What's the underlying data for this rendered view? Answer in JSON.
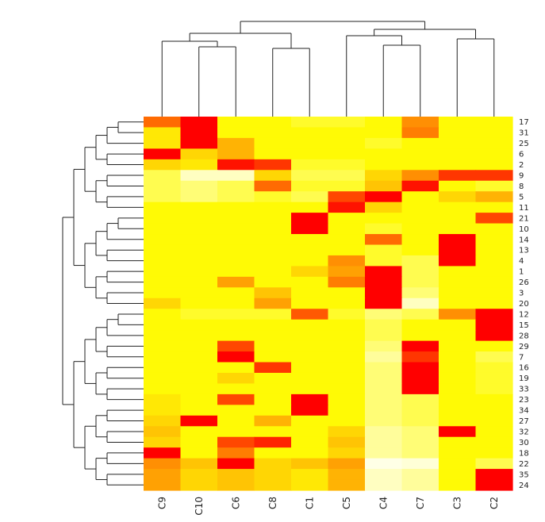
{
  "chart_data": {
    "type": "heatmap",
    "title": "",
    "xlabel": "",
    "ylabel": "",
    "legend": "none",
    "columns": [
      "C9",
      "C10",
      "C6",
      "C8",
      "C1",
      "C5",
      "C4",
      "C7",
      "C3",
      "C2"
    ],
    "rows": [
      "17",
      "31",
      "25",
      "6",
      "2",
      "9",
      "8",
      "5",
      "11",
      "21",
      "10",
      "14",
      "13",
      "4",
      "1",
      "26",
      "3",
      "20",
      "12",
      "15",
      "28",
      "29",
      "7",
      "16",
      "19",
      "33",
      "23",
      "34",
      "27",
      "32",
      "30",
      "18",
      "22",
      "35",
      "24"
    ],
    "value_scale": "0 = pale/white, 1 = red (heat colors)",
    "values": [
      [
        0.7,
        1.0,
        0.3,
        0.3,
        0.25,
        0.25,
        0.3,
        0.6,
        0.3,
        0.3
      ],
      [
        0.35,
        1.0,
        0.3,
        0.3,
        0.3,
        0.3,
        0.3,
        0.65,
        0.3,
        0.3
      ],
      [
        0.35,
        1.0,
        0.5,
        0.3,
        0.3,
        0.3,
        0.25,
        0.3,
        0.3,
        0.3
      ],
      [
        1.0,
        0.4,
        0.5,
        0.3,
        0.3,
        0.3,
        0.3,
        0.3,
        0.3,
        0.3
      ],
      [
        0.4,
        0.35,
        0.95,
        0.85,
        0.25,
        0.25,
        0.3,
        0.3,
        0.3,
        0.3
      ],
      [
        0.2,
        0.05,
        0.05,
        0.4,
        0.2,
        0.2,
        0.4,
        0.6,
        0.85,
        0.85
      ],
      [
        0.2,
        0.15,
        0.2,
        0.7,
        0.25,
        0.25,
        0.45,
        0.95,
        0.3,
        0.25
      ],
      [
        0.2,
        0.15,
        0.2,
        0.25,
        0.2,
        0.8,
        1.0,
        0.3,
        0.4,
        0.5
      ],
      [
        0.3,
        0.3,
        0.3,
        0.3,
        0.3,
        0.95,
        0.4,
        0.3,
        0.3,
        0.3
      ],
      [
        0.3,
        0.3,
        0.3,
        0.3,
        1.0,
        0.3,
        0.3,
        0.3,
        0.3,
        0.8
      ],
      [
        0.3,
        0.3,
        0.3,
        0.3,
        1.0,
        0.3,
        0.25,
        0.3,
        0.3,
        0.3
      ],
      [
        0.3,
        0.3,
        0.3,
        0.3,
        0.3,
        0.3,
        0.7,
        0.3,
        1.0,
        0.3
      ],
      [
        0.3,
        0.3,
        0.3,
        0.3,
        0.3,
        0.3,
        0.25,
        0.3,
        1.0,
        0.3
      ],
      [
        0.3,
        0.3,
        0.3,
        0.3,
        0.3,
        0.6,
        0.25,
        0.2,
        1.0,
        0.3
      ],
      [
        0.3,
        0.3,
        0.3,
        0.3,
        0.4,
        0.55,
        1.0,
        0.2,
        0.3,
        0.3
      ],
      [
        0.3,
        0.3,
        0.55,
        0.3,
        0.3,
        0.65,
        1.0,
        0.2,
        0.3,
        0.3
      ],
      [
        0.3,
        0.3,
        0.3,
        0.45,
        0.3,
        0.3,
        1.0,
        0.15,
        0.3,
        0.3
      ],
      [
        0.4,
        0.3,
        0.3,
        0.55,
        0.3,
        0.3,
        1.0,
        0.05,
        0.3,
        0.3
      ],
      [
        0.3,
        0.25,
        0.25,
        0.25,
        0.75,
        0.25,
        0.15,
        0.2,
        0.6,
        1.0
      ],
      [
        0.3,
        0.3,
        0.3,
        0.3,
        0.3,
        0.3,
        0.2,
        0.3,
        0.3,
        1.0
      ],
      [
        0.3,
        0.3,
        0.3,
        0.3,
        0.3,
        0.3,
        0.2,
        0.3,
        0.3,
        1.0
      ],
      [
        0.3,
        0.3,
        0.8,
        0.3,
        0.3,
        0.3,
        0.15,
        1.0,
        0.3,
        0.3
      ],
      [
        0.3,
        0.3,
        1.0,
        0.3,
        0.3,
        0.3,
        0.1,
        0.85,
        0.3,
        0.2
      ],
      [
        0.3,
        0.3,
        0.3,
        0.85,
        0.3,
        0.3,
        0.15,
        1.0,
        0.3,
        0.25
      ],
      [
        0.3,
        0.3,
        0.4,
        0.3,
        0.3,
        0.3,
        0.15,
        1.0,
        0.3,
        0.25
      ],
      [
        0.3,
        0.3,
        0.3,
        0.3,
        0.3,
        0.3,
        0.15,
        1.0,
        0.3,
        0.25
      ],
      [
        0.35,
        0.3,
        0.8,
        0.3,
        1.0,
        0.3,
        0.15,
        0.2,
        0.3,
        0.3
      ],
      [
        0.35,
        0.3,
        0.3,
        0.3,
        1.0,
        0.3,
        0.15,
        0.2,
        0.3,
        0.3
      ],
      [
        0.4,
        1.0,
        0.3,
        0.5,
        0.3,
        0.3,
        0.15,
        0.2,
        0.3,
        0.3
      ],
      [
        0.45,
        0.3,
        0.3,
        0.3,
        0.3,
        0.4,
        0.1,
        0.15,
        1.0,
        0.3
      ],
      [
        0.4,
        0.3,
        0.8,
        0.9,
        0.3,
        0.45,
        0.1,
        0.15,
        0.3,
        0.3
      ],
      [
        1.0,
        0.3,
        0.65,
        0.3,
        0.3,
        0.4,
        0.1,
        0.15,
        0.3,
        0.3
      ],
      [
        0.6,
        0.45,
        1.0,
        0.4,
        0.45,
        0.55,
        0.0,
        0.02,
        0.3,
        0.2
      ],
      [
        0.55,
        0.4,
        0.45,
        0.4,
        0.35,
        0.5,
        0.05,
        0.1,
        0.3,
        1.0
      ],
      [
        0.55,
        0.4,
        0.45,
        0.4,
        0.35,
        0.5,
        0.05,
        0.1,
        0.3,
        1.0
      ]
    ]
  }
}
